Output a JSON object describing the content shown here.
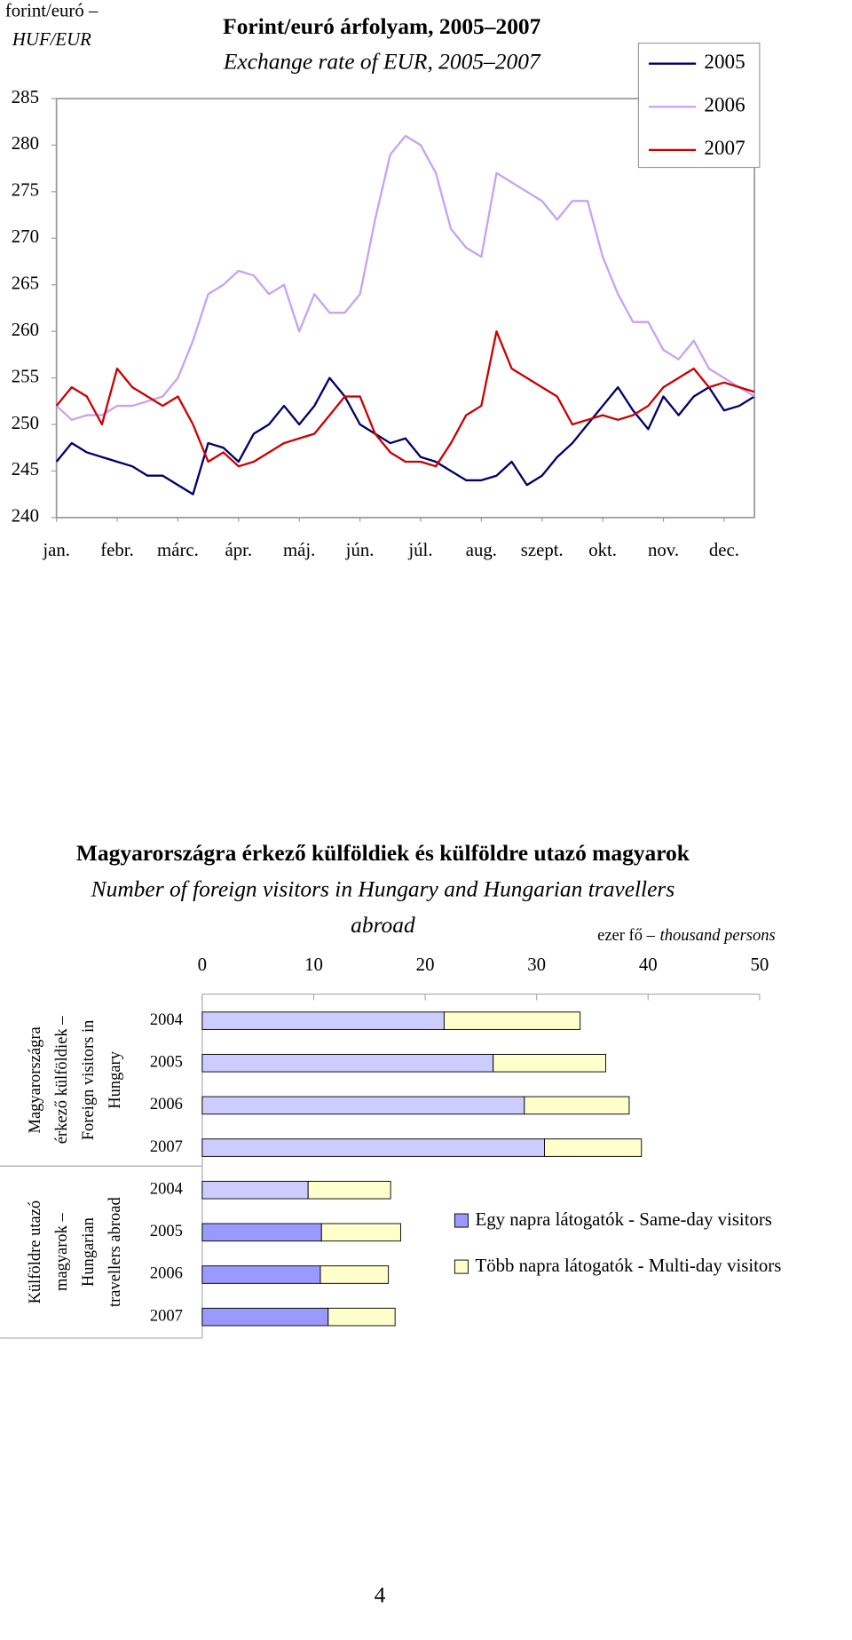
{
  "chart_data": [
    {
      "type": "line",
      "title_lines": [
        "Forint/euró árfolyam, 2005–2007",
        "Exchange rate of EUR, 2005–2007"
      ],
      "y_label_lines": [
        "forint/euró –",
        "HUF/EUR"
      ],
      "x": [
        0,
        0.25,
        0.5,
        0.75,
        1,
        1.25,
        1.5,
        1.75,
        2,
        2.25,
        2.5,
        2.75,
        3,
        3.25,
        3.5,
        3.75,
        4,
        4.25,
        4.5,
        4.75,
        5,
        5.25,
        5.5,
        5.75,
        6,
        6.25,
        6.5,
        6.75,
        7,
        7.25,
        7.5,
        7.75,
        8,
        8.25,
        8.5,
        8.75,
        9,
        9.25,
        9.5,
        9.75,
        10,
        10.25,
        10.5,
        10.75,
        11,
        11.25,
        11.5
      ],
      "xlim": [
        0,
        11.5
      ],
      "xticks": [
        {
          "value": 0,
          "label": "jan."
        },
        {
          "value": 1,
          "label": "febr."
        },
        {
          "value": 2,
          "label": "márc."
        },
        {
          "value": 3,
          "label": "ápr."
        },
        {
          "value": 4,
          "label": "máj."
        },
        {
          "value": 5,
          "label": "jún."
        },
        {
          "value": 6,
          "label": "júl."
        },
        {
          "value": 7,
          "label": "aug."
        },
        {
          "value": 8,
          "label": "szept."
        },
        {
          "value": 9,
          "label": "okt."
        },
        {
          "value": 10,
          "label": "nov."
        },
        {
          "value": 11,
          "label": "dec."
        }
      ],
      "ylim": [
        240,
        285
      ],
      "yticks": [
        240,
        245,
        250,
        255,
        260,
        265,
        270,
        275,
        280,
        285
      ],
      "legend": "top-right",
      "series": [
        {
          "name": "2005",
          "color": "#000066",
          "values": [
            246,
            248,
            247,
            246.5,
            246,
            245.5,
            244.5,
            244.5,
            243.5,
            242.5,
            248,
            247.5,
            246,
            249,
            250,
            252,
            250,
            252,
            255,
            253,
            250,
            249,
            248,
            248.5,
            246.5,
            246,
            245,
            244,
            244,
            244.5,
            246,
            243.5,
            244.5,
            246.5,
            248,
            250,
            252,
            254,
            251.5,
            249.5,
            253,
            251,
            253,
            254,
            251.5,
            252,
            253
          ]
        },
        {
          "name": "2006",
          "color": "#c8a2f0",
          "values": [
            252,
            250.5,
            251,
            251,
            252,
            252,
            252.5,
            253,
            255,
            259,
            264,
            265,
            266.5,
            266,
            264,
            265,
            260,
            264,
            262,
            262,
            264,
            272,
            279,
            281,
            280,
            277,
            271,
            269,
            268,
            277,
            276,
            275,
            274,
            272,
            274,
            274,
            268,
            264,
            261,
            261,
            258,
            257,
            259,
            256,
            255,
            254,
            253
          ]
        },
        {
          "name": "2007",
          "color": "#cc0000",
          "values": [
            252,
            254,
            253,
            250,
            256,
            254,
            253,
            252,
            253,
            250,
            246,
            247,
            245.5,
            246,
            247,
            248,
            248.5,
            249,
            251,
            253,
            253,
            249,
            247,
            246,
            246,
            245.5,
            248,
            251,
            252,
            260,
            256,
            255,
            254,
            253,
            250,
            250.5,
            251,
            250.5,
            251,
            252,
            254,
            255,
            256,
            254,
            254.5,
            254,
            253.5
          ]
        }
      ]
    },
    {
      "type": "bar",
      "orientation": "horizontal",
      "stacked": true,
      "title": "Magyarországra érkező külföldiek és külföldre utazó magyarok",
      "subtitle_lines": [
        "Number of foreign visitors in Hungary and Hungarian travellers",
        "abroad"
      ],
      "unit_label_lines": [
        "ezer fő –",
        "thousand persons"
      ],
      "categories": [
        "2004",
        "2005",
        "2006",
        "2007",
        "2004",
        "2005",
        "2006",
        "2007"
      ],
      "group_labels": [
        [
          "Magyarországra",
          "érkező külföldiek –",
          "Foreign visitors in",
          "Hungary"
        ],
        [
          "Külföldre utazó",
          "magyarok –",
          "Hungarian",
          "travellers abroad"
        ]
      ],
      "xlim": [
        0,
        50
      ],
      "xticks": [
        0,
        10,
        20,
        30,
        40,
        50
      ],
      "legend": "right",
      "series": [
        {
          "name": "Egy napra látogatók - Same-day visitors",
          "color": "#9999ff",
          "bar_colors": [
            "#ccccff",
            "#ccccff",
            "#ccccff",
            "#ccccff",
            "#ccccff",
            "#9999ff",
            "#9999ff",
            "#9999ff"
          ],
          "values": [
            21.7,
            26.1,
            28.9,
            30.7,
            9.5,
            10.7,
            10.6,
            11.3
          ]
        },
        {
          "name": "Több napra látogatók - Multi-day visitors",
          "color": "#ffffcc",
          "values": [
            12.2,
            10.1,
            9.4,
            8.7,
            7.4,
            7.1,
            6.1,
            6.0
          ]
        }
      ]
    }
  ],
  "page_number": "4"
}
